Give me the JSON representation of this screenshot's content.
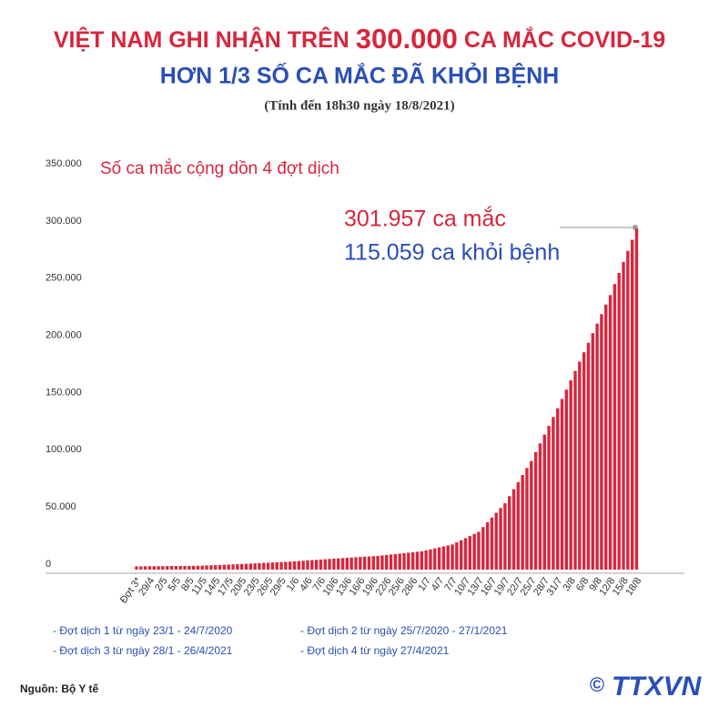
{
  "chart_data": {
    "type": "bar",
    "title_parts": [
      "VIỆT NAM GHI NHẬN TRÊN",
      "300.000",
      "CA MẮC COVID-19"
    ],
    "subtitle": "HƠN 1/3 SỐ CA MẮC ĐÃ KHỎI BỆNH",
    "date_note": "(Tính đến 18h30 ngày 18/8/2021)",
    "series_label": "Số ca mắc cộng dồn 4 đợt dịch",
    "annotations": [
      "301.957 ca mắc",
      "115.059 ca khỏi bệnh"
    ],
    "notes": [
      "- Đợt dịch 1 từ ngày 23/1 - 24/7/2020",
      "- Đợt dịch 2 từ ngày 25/7/2020 - 27/1/2021",
      "- Đợt dịch 3 từ ngày 28/1 - 26/4/2021",
      "- Đợt dịch 4 từ ngày 27/4/2021"
    ],
    "source": "Nguồn: Bộ Y tế",
    "copyright": "©",
    "logo": "TTXVN",
    "color": "#d7263d",
    "ylim": [
      0,
      350000
    ],
    "yticks": [
      0,
      {
        "value": 50000,
        "label": "50.000"
      },
      {
        "value": 100000,
        "label": "100.000"
      },
      {
        "value": 150000,
        "label": "150.000"
      },
      {
        "value": 200000,
        "label": "200.000"
      },
      {
        "value": 250000,
        "label": "250.000"
      },
      {
        "value": 300000,
        "label": "300.000"
      },
      {
        "value": 350000,
        "label": "350.000"
      }
    ],
    "grid": false,
    "categories": [
      "Đợt 3*",
      null,
      null,
      "29/4",
      null,
      null,
      "2/5",
      null,
      null,
      "5/5",
      null,
      null,
      "8/5",
      null,
      null,
      "11/5",
      null,
      null,
      "14/5",
      null,
      null,
      "17/5",
      null,
      null,
      "20/5",
      null,
      null,
      "23/5",
      null,
      null,
      "26/5",
      null,
      null,
      "29/5",
      null,
      null,
      "1/6",
      null,
      null,
      "4/6",
      null,
      null,
      "7/6",
      null,
      null,
      "10/6",
      null,
      null,
      "13/6",
      null,
      null,
      "16/6",
      null,
      null,
      "19/6",
      null,
      null,
      "22/6",
      null,
      null,
      "25/6",
      null,
      null,
      "28/6",
      null,
      null,
      "1/7",
      null,
      null,
      "4/7",
      null,
      null,
      "7/7",
      null,
      null,
      "10/7",
      null,
      null,
      "13/7",
      null,
      null,
      "16/7",
      null,
      null,
      "19/7",
      null,
      null,
      "22/7",
      null,
      null,
      "25/7",
      null,
      null,
      "28/7",
      null,
      null,
      "31/7",
      null,
      null,
      "3/8",
      null,
      null,
      "6/8",
      null,
      null,
      "9/8",
      null,
      null,
      "12/8",
      null,
      null,
      "15/8",
      null,
      null,
      "18/8"
    ],
    "values": [
      2852,
      2900,
      2930,
      2960,
      2990,
      3020,
      3050,
      3080,
      3120,
      3150,
      3180,
      3210,
      3240,
      3270,
      3300,
      3460,
      3620,
      3780,
      3940,
      4100,
      4260,
      4420,
      4580,
      4740,
      4900,
      5090,
      5280,
      5470,
      5660,
      5850,
      6050,
      6240,
      6430,
      6620,
      6810,
      7000,
      7260,
      7520,
      7780,
      8040,
      8300,
      8560,
      8820,
      9080,
      9340,
      9600,
      9840,
      10080,
      10320,
      10560,
      10800,
      11040,
      11280,
      11520,
      11760,
      12000,
      12400,
      12800,
      13200,
      13600,
      14000,
      14400,
      14800,
      15200,
      15600,
      16000,
      16860,
      17710,
      18570,
      19430,
      20290,
      21140,
      22000,
      23830,
      25670,
      27500,
      29330,
      31170,
      33000,
      37170,
      41330,
      45500,
      49670,
      53830,
      58000,
      64170,
      70330,
      76500,
      82670,
      88830,
      95000,
      102670,
      110330,
      118000,
      125670,
      133330,
      141000,
      149170,
      157330,
      165500,
      173670,
      181830,
      190000,
      198330,
      206670,
      215000,
      223330,
      231670,
      240000,
      249670,
      259330,
      269000,
      278670,
      288330,
      298000
    ]
  }
}
